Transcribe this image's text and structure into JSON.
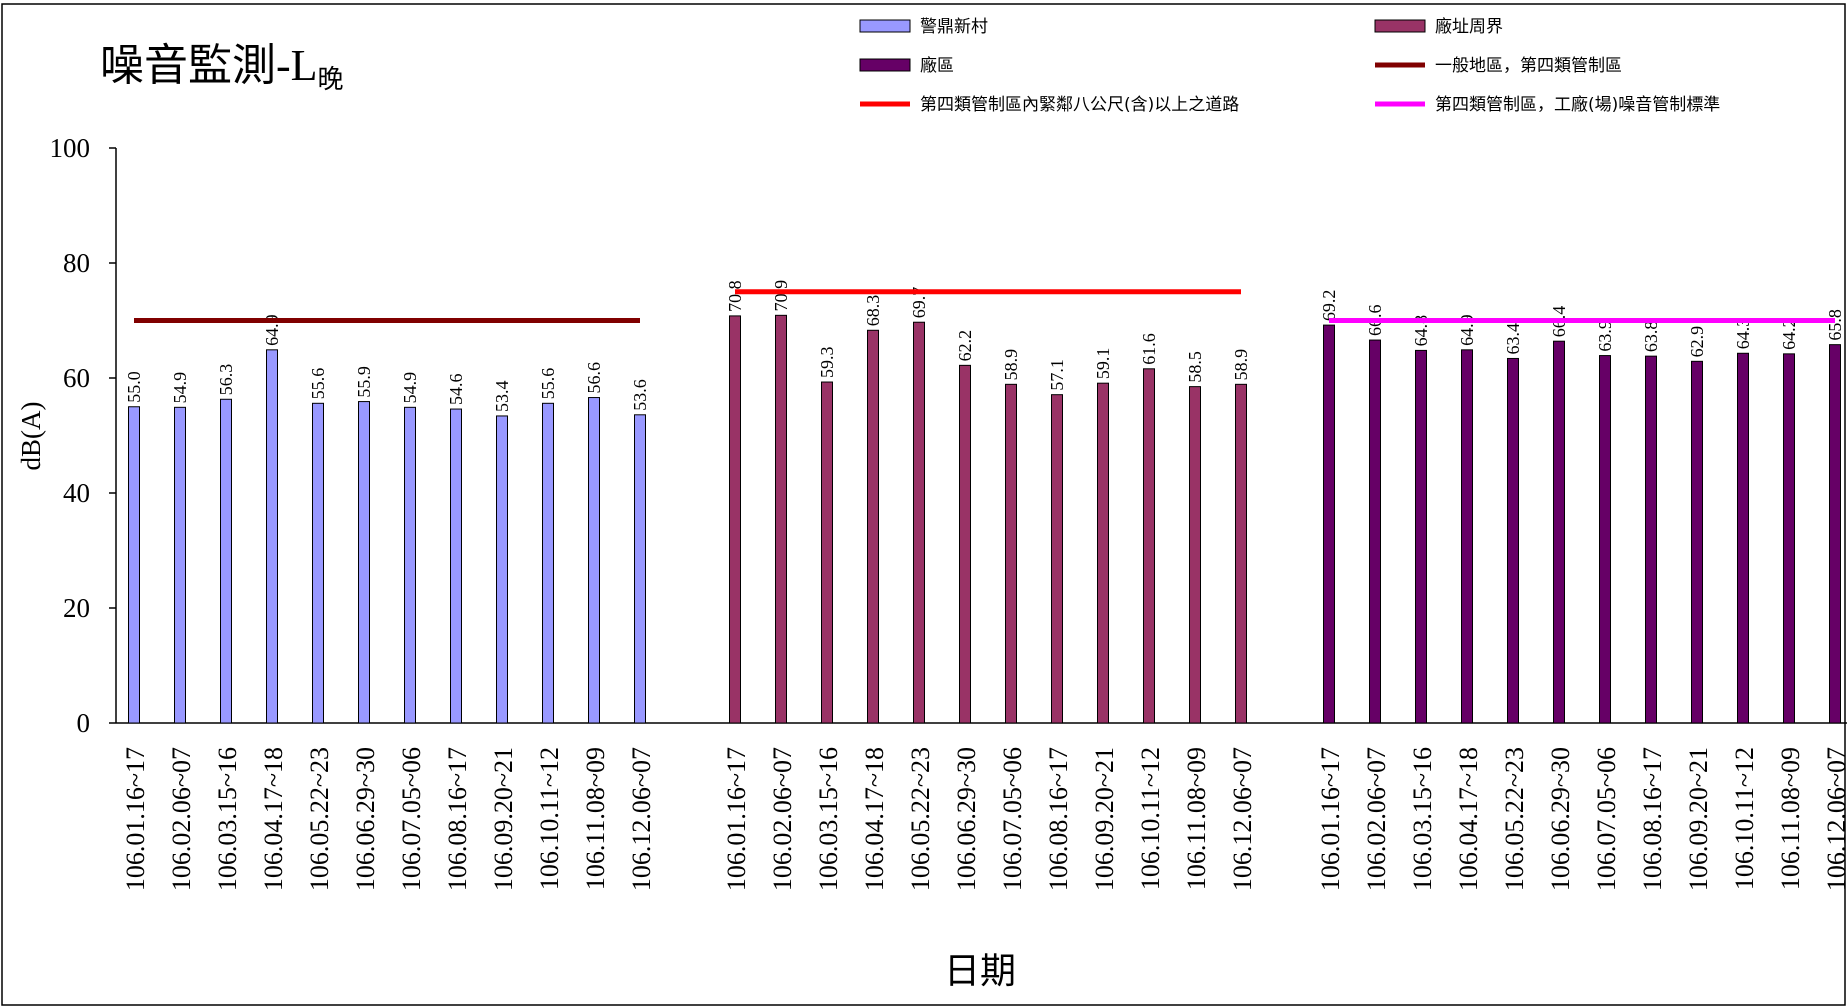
{
  "chart_data": {
    "type": "bar",
    "title": "噪音監測-L",
    "title_subscript": "晚",
    "xlabel": "日期",
    "ylabel": "dB(A)",
    "ylim": [
      0,
      100
    ],
    "yticks": [
      0,
      20,
      40,
      60,
      80,
      100
    ],
    "grid": false,
    "legend_position": "top",
    "groups": [
      {
        "name": "警鼎新村",
        "color": "#9999ff",
        "categories": [
          "106.01.16~17",
          "106.02.06~07",
          "106.03.15~16",
          "106.04.17~18",
          "106.05.22~23",
          "106.06.29~30",
          "106.07.05~06",
          "106.08.16~17",
          "106.09.20~21",
          "106.10.11~12",
          "106.11.08~09",
          "106.12.06~07"
        ],
        "values": [
          55.0,
          54.9,
          56.3,
          64.9,
          55.6,
          55.9,
          54.9,
          54.6,
          53.4,
          55.6,
          56.6,
          53.6
        ],
        "labels": [
          "55.0",
          "54.9",
          "56.3",
          "64.9",
          "55.6",
          "55.9",
          "54.9",
          "54.6",
          "53.4",
          "55.6",
          "56.6",
          "53.6"
        ]
      },
      {
        "name": "廠址周界",
        "color": "#993366",
        "categories": [
          "106.01.16~17",
          "106.02.06~07",
          "106.03.15~16",
          "106.04.17~18",
          "106.05.22~23",
          "106.06.29~30",
          "106.07.05~06",
          "106.08.16~17",
          "106.09.20~21",
          "106.10.11~12",
          "106.11.08~09",
          "106.12.06~07"
        ],
        "values": [
          70.8,
          70.9,
          59.3,
          68.3,
          69.7,
          62.2,
          58.9,
          57.1,
          59.1,
          61.6,
          58.5,
          58.9
        ],
        "labels": [
          "70.8",
          "70.9",
          "59.3",
          "68.3",
          "69.7",
          "62.2",
          "58.9",
          "57.1",
          "59.1",
          "61.6",
          "58.5",
          "58.9"
        ]
      },
      {
        "name": "廠區",
        "color": "#660066",
        "categories": [
          "106.01.16~17",
          "106.02.06~07",
          "106.03.15~16",
          "106.04.17~18",
          "106.05.22~23",
          "106.06.29~30",
          "106.07.05~06",
          "106.08.16~17",
          "106.09.20~21",
          "106.10.11~12",
          "106.11.08~09",
          "106.12.06~07"
        ],
        "values": [
          69.2,
          66.6,
          64.8,
          64.9,
          63.4,
          66.4,
          63.9,
          63.8,
          62.9,
          64.3,
          64.2,
          65.8
        ],
        "labels": [
          "69.2",
          "66.6",
          "64.8",
          "64.9",
          "63.4",
          "66.4",
          "63.9",
          "63.8",
          "62.9",
          "64.3",
          "64.2",
          "65.8"
        ]
      }
    ],
    "reference_lines": [
      {
        "name": "一般地區，第四類管制區",
        "value": 70,
        "color": "#800000",
        "group": 0
      },
      {
        "name": "第四類管制區內緊鄰八公尺(含)以上之道路",
        "value": 75,
        "color": "#ff0000",
        "group": 1
      },
      {
        "name": "第四類管制區，工廠(場)噪音管制標準",
        "value": 70,
        "color": "#ff00ff",
        "group": 2
      }
    ],
    "legend": [
      {
        "label": "警鼎新村",
        "kind": "bar",
        "color": "#9999ff"
      },
      {
        "label": "廠址周界",
        "kind": "bar",
        "color": "#993366"
      },
      {
        "label": "廠區",
        "kind": "bar",
        "color": "#660066"
      },
      {
        "label": "一般地區，第四類管制區",
        "kind": "line",
        "color": "#800000"
      },
      {
        "label": "第四類管制區內緊鄰八公尺(含)以上之道路",
        "kind": "line",
        "color": "#ff0000"
      },
      {
        "label": "第四類管制區，工廠(場)噪音管制標準",
        "kind": "line",
        "color": "#ff00ff"
      }
    ]
  }
}
